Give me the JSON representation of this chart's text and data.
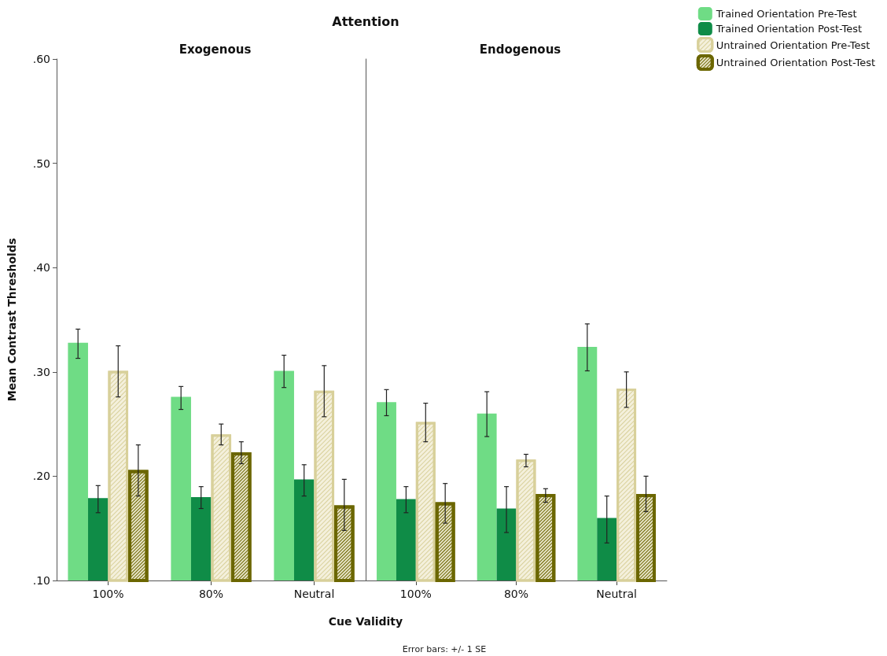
{
  "chart_data": [
    {
      "type": "bar",
      "title": "Attention",
      "subtitle": "Exogenous",
      "xlabel": "Cue Validity",
      "ylabel": "Mean Contrast Thresholds",
      "annotations": [
        "Error bars: +/- 1 SE"
      ],
      "categories": [
        "100%",
        "80%",
        "Neutral"
      ],
      "ylim": [
        0.1,
        0.6
      ],
      "yticks": [
        {
          "value": 0.1,
          "label": ".10"
        },
        {
          "value": 0.2,
          "label": ".20"
        },
        {
          "value": 0.3,
          "label": ".30"
        },
        {
          "value": 0.4,
          "label": ".40"
        },
        {
          "value": 0.5,
          "label": ".50"
        },
        {
          "value": 0.6,
          "label": ".60"
        }
      ],
      "grid": false,
      "series": [
        {
          "color": "#6fdc85",
          "values": [
            0.328,
            0.276,
            0.301
          ],
          "errors": [
            [
              0.313,
              0.341
            ],
            [
              0.264,
              0.286
            ],
            [
              0.285,
              0.316
            ]
          ]
        },
        {
          "color": "#0f8c47",
          "values": [
            0.179,
            0.18,
            0.197
          ],
          "errors": [
            [
              0.165,
              0.191
            ],
            [
              0.169,
              0.19
            ],
            [
              0.181,
              0.211
            ]
          ]
        },
        {
          "color": "#d8d09a",
          "values": [
            0.301,
            0.24,
            0.282
          ],
          "errors": [
            [
              0.276,
              0.325
            ],
            [
              0.23,
              0.25
            ],
            [
              0.257,
              0.306
            ]
          ]
        },
        {
          "color": "#6b6600",
          "values": [
            0.206,
            0.223,
            0.172
          ],
          "errors": [
            [
              0.181,
              0.23
            ],
            [
              0.212,
              0.233
            ],
            [
              0.148,
              0.197
            ]
          ]
        }
      ]
    },
    {
      "type": "bar",
      "subtitle": "Endogenous",
      "categories": [
        "100%",
        "80%",
        "Neutral"
      ],
      "ylim": [
        0.1,
        0.6
      ],
      "grid": false,
      "tick_labels": "x",
      "legend": "top right",
      "series": [
        {
          "name": "Trained Orientation Pre-Test",
          "color": "#6fdc85",
          "values": [
            0.271,
            0.26,
            0.324
          ],
          "errors": [
            [
              0.258,
              0.283
            ],
            [
              0.238,
              0.281
            ],
            [
              0.301,
              0.346
            ]
          ]
        },
        {
          "name": "Trained Orientation Post-Test",
          "color": "#0f8c47",
          "values": [
            0.178,
            0.169,
            0.16
          ],
          "errors": [
            [
              0.165,
              0.19
            ],
            [
              0.146,
              0.19
            ],
            [
              0.136,
              0.181
            ]
          ]
        },
        {
          "name": "Untrained Orientation Pre-Test",
          "color": "#d8d09a",
          "values": [
            0.252,
            0.216,
            0.284
          ],
          "errors": [
            [
              0.233,
              0.27
            ],
            [
              0.209,
              0.221
            ],
            [
              0.266,
              0.3
            ]
          ]
        },
        {
          "name": "Untrained Orientation Post-Test",
          "color": "#6b6600",
          "values": [
            0.175,
            0.183,
            0.183
          ],
          "errors": [
            [
              0.155,
              0.193
            ],
            [
              0.175,
              0.188
            ],
            [
              0.166,
              0.2
            ]
          ]
        }
      ]
    }
  ]
}
